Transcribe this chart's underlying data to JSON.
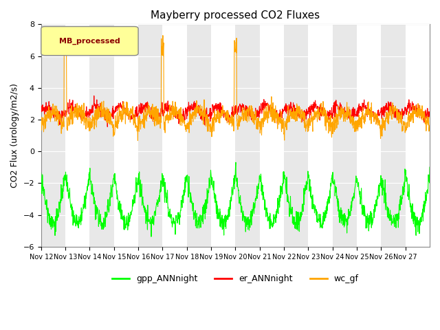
{
  "title": "Mayberry processed CO2 Fluxes",
  "ylabel": "CO2 Flux (urology/m2/s)",
  "ylim": [
    -6,
    8
  ],
  "yticks": [
    -6,
    -4,
    -2,
    0,
    2,
    4,
    6,
    8
  ],
  "x_labels": [
    "Nov 12",
    "Nov 13",
    "Nov 14",
    "Nov 15",
    "Nov 16",
    "Nov 17",
    "Nov 18",
    "Nov 19",
    "Nov 20",
    "Nov 21",
    "Nov 22",
    "Nov 23",
    "Nov 24",
    "Nov 25",
    "Nov 26",
    "Nov 27"
  ],
  "legend_label": "MB_processed",
  "legend_text_color": "#8B0000",
  "legend_box_color": "#FFFF99",
  "line_colors": {
    "gpp": "#00FF00",
    "er": "#FF0000",
    "wc": "#FFA500"
  },
  "series_labels": [
    "gpp_ANNnight",
    "er_ANNnight",
    "wc_gf"
  ],
  "background_band_color": "#e8e8e8",
  "n_points": 1536,
  "seed": 42
}
